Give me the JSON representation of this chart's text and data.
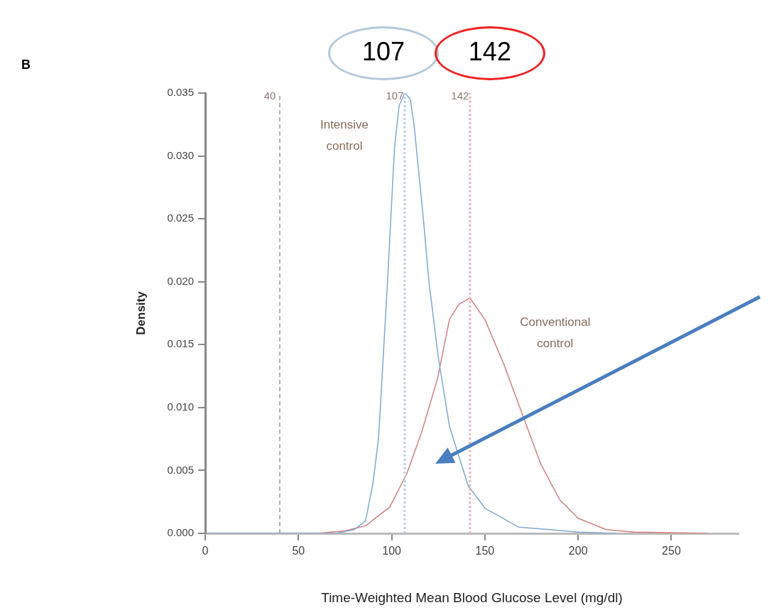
{
  "chart_data": {
    "type": "line",
    "xlabel": "Time-Weighted Mean Blood Glucose Level (mg/dl)",
    "ylabel": "Density",
    "xlim": [
      0,
      286
    ],
    "xticks": [
      0,
      50,
      100,
      150,
      200,
      250
    ],
    "ylim": [
      0,
      0.035
    ],
    "yticks": [
      {
        "value": 0,
        "label": "0.000"
      },
      {
        "value": 0.005,
        "label": "0.005"
      },
      {
        "value": 0.01,
        "label": "0.010"
      },
      {
        "value": 0.015,
        "label": "0.015"
      },
      {
        "value": 0.02,
        "label": "0.020"
      },
      {
        "value": 0.025,
        "label": "0.025"
      },
      {
        "value": 0.03,
        "label": "0.030"
      },
      {
        "value": 0.035,
        "label": "0.035"
      }
    ],
    "grid": false,
    "legend": false,
    "marker": "none",
    "line_style": "solid",
    "series": [
      {
        "name": "Intensive control",
        "color": "#7fa8cf",
        "x": [
          0,
          70,
          80,
          86,
          90,
          93,
          97.7,
          101.5,
          104,
          107,
          110,
          112,
          117,
          120,
          125,
          131,
          141,
          150,
          168,
          200,
          220
        ],
        "values": [
          0,
          0,
          0.0003,
          0.001,
          0.004,
          0.0076,
          0.0198,
          0.0306,
          0.034,
          0.035,
          0.0345,
          0.0325,
          0.025,
          0.02,
          0.014,
          0.0085,
          0.0038,
          0.002,
          0.0005,
          0.0001,
          0
        ]
      },
      {
        "name": "Conventional control",
        "color": "#d08080",
        "x": [
          0,
          60,
          75,
          86,
          99,
          108,
          116,
          124.6,
          131,
          136,
          142,
          150,
          160,
          170,
          180,
          190,
          200,
          215,
          230,
          270
        ],
        "values": [
          0,
          0,
          0.0002,
          0.0006,
          0.0021,
          0.0047,
          0.008,
          0.0123,
          0.017,
          0.0182,
          0.0187,
          0.017,
          0.0135,
          0.0095,
          0.0055,
          0.0027,
          0.0012,
          0.0003,
          0.0001,
          0
        ]
      }
    ],
    "ref_lines": [
      {
        "axis": "x",
        "value": 40,
        "label": "40",
        "color": "#999999",
        "line_style": "dashed"
      },
      {
        "axis": "x",
        "value": 107,
        "label": "107",
        "color": "#b8d0e4",
        "line_style": "dotted"
      },
      {
        "axis": "x",
        "value": 142,
        "label": "142",
        "color": "#e8b4b8",
        "line_style": "dotted"
      }
    ],
    "annotations": [
      "B",
      {
        "text": "107",
        "x": 107,
        "y": 0.035
      },
      {
        "text": "142",
        "x": 142,
        "y": 0.035
      }
    ]
  }
}
